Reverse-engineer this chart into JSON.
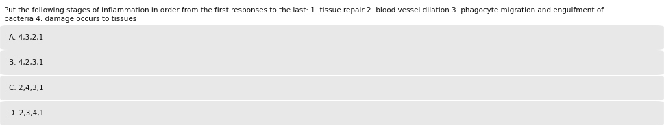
{
  "question_line1": "Put the following stages of inflammation in order from the first responses to the last: 1. tissue repair 2. blood vessel dilation 3. phagocyte migration and engulfment of",
  "question_line2": "bacteria 4. damage occurs to tissues",
  "options": [
    "A. 4,3,2,1",
    "B. 4,2,3,1",
    "C. 2,4,3,1",
    "D. 2,3,4,1"
  ],
  "bg_color": "#ffffff",
  "option_box_color": "#e8e8e8",
  "text_color": "#111111",
  "question_fontsize": 7.5,
  "option_fontsize": 7.5,
  "fig_width": 9.69,
  "fig_height": 1.95,
  "dpi": 100
}
